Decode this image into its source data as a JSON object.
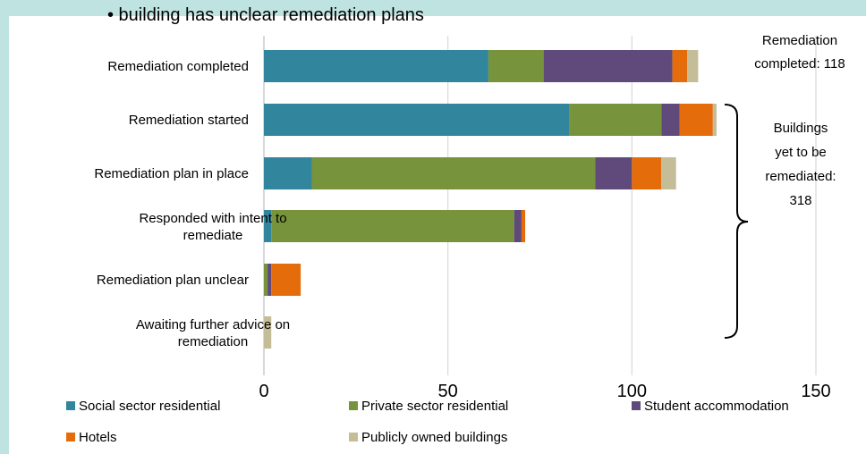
{
  "title": "• building has unclear remediation plans",
  "chart_data": {
    "type": "bar",
    "orientation": "horizontal",
    "stacked": true,
    "categories": [
      [
        "Remediation completed"
      ],
      [
        "Remediation started"
      ],
      [
        "Remediation plan in place"
      ],
      [
        "Responded with intent to",
        "remediate"
      ],
      [
        "Remediation plan unclear"
      ],
      [
        "Awaiting further advice on",
        "remediation"
      ]
    ],
    "series": [
      {
        "name": "Social sector residential",
        "color": "#31859c",
        "values": [
          61,
          83,
          13,
          2,
          0,
          0
        ]
      },
      {
        "name": "Private sector residential",
        "color": "#77933c",
        "values": [
          15,
          25,
          77,
          66,
          1,
          0
        ]
      },
      {
        "name": "Student accommodation",
        "color": "#604a7b",
        "values": [
          35,
          5,
          10,
          2,
          1,
          0
        ]
      },
      {
        "name": "Hotels",
        "color": "#e46c0a",
        "values": [
          4,
          9,
          8,
          1,
          8,
          0
        ]
      },
      {
        "name": "Publicly owned buildings",
        "color": "#c4bd97",
        "values": [
          3,
          1,
          4,
          0,
          0,
          2
        ]
      }
    ],
    "xlim": [
      0,
      150
    ],
    "xticks": [
      0,
      50,
      100,
      150
    ],
    "grid": "vertical",
    "legend_position": "bottom"
  },
  "annotations": {
    "completed": [
      "Remediation",
      "completed: 118"
    ],
    "yet_to_be": [
      "Buildings",
      "yet to be",
      "remediated:",
      "318"
    ]
  }
}
